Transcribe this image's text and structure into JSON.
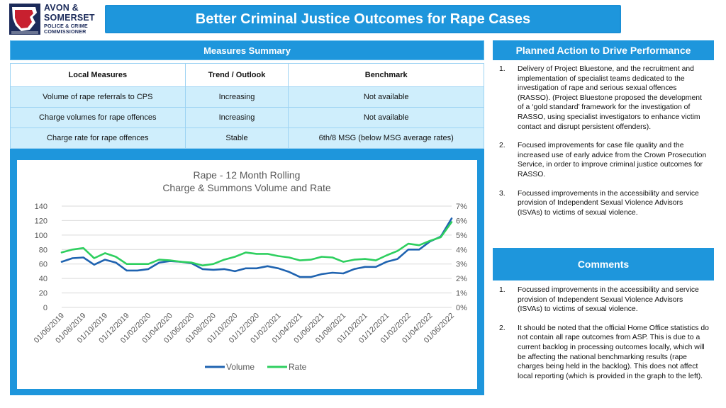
{
  "logo": {
    "line1": "AVON &",
    "line2": "SOMERSET",
    "line3": "POLICE & CRIME",
    "line4": "COMMISSIONER"
  },
  "title": "Better Criminal Justice Outcomes for Rape Cases",
  "measures": {
    "header": "Measures Summary",
    "columns": [
      "Local Measures",
      "Trend / Outlook",
      "Benchmark"
    ],
    "rows": [
      [
        "Volume of rape referrals to CPS",
        "Increasing",
        "Not available"
      ],
      [
        "Charge volumes for rape offences",
        "Increasing",
        "Not available"
      ],
      [
        "Charge rate for rape offences",
        "Stable",
        "6th/8 MSG (below MSG average rates)"
      ]
    ]
  },
  "planned_action": {
    "header": "Planned Action to Drive Performance",
    "items": [
      {
        "num": "1.",
        "text": "Delivery of Project Bluestone, and the recruitment and implementation of specialist teams dedicated to the investigation of rape and serious sexual offences (RASSO). (Project Bluestone proposed the development of a ‘gold standard’ framework for the investigation of RASSO, using specialist investigators to enhance victim contact and disrupt persistent offenders)."
      },
      {
        "num": "2.",
        "text": "Focused improvements for case file quality and the increased use of early advice from the Crown Prosecution Service, in order to improve criminal justice outcomes for RASSO."
      },
      {
        "num": "3.",
        "text": "Focussed improvements in the accessibility and service provision of Independent Sexual Violence Advisors (ISVAs) to victims of sexual violence."
      }
    ]
  },
  "comments": {
    "header": "Comments",
    "items": [
      {
        "num": "1.",
        "text": "Focussed improvements in the accessibility and service provision of Independent Sexual Violence Advisors (ISVAs) to victims of sexual violence."
      },
      {
        "num": "2.",
        "text": "It should be noted that the official Home Office statistics do not contain all rape outcomes from ASP. This is due to a current backlog in processing outcomes locally, which will be affecting the national benchmarking results (rape charges being held in the backlog). This does not affect local reporting (which is provided in the graph to the left)."
      }
    ]
  },
  "chart_data": {
    "type": "line",
    "title_line1": "Rape - 12 Month Rolling",
    "title_line2": "Charge & Summons Volume and Rate",
    "x": [
      "01/06/2019",
      "01/07/2019",
      "01/08/2019",
      "01/09/2019",
      "01/10/2019",
      "01/11/2019",
      "01/12/2019",
      "01/01/2020",
      "01/02/2020",
      "01/03/2020",
      "01/04/2020",
      "01/05/2020",
      "01/06/2020",
      "01/07/2020",
      "01/08/2020",
      "01/09/2020",
      "01/10/2020",
      "01/11/2020",
      "01/12/2020",
      "01/01/2021",
      "01/02/2021",
      "01/03/2021",
      "01/04/2021",
      "01/05/2021",
      "01/06/2021",
      "01/07/2021",
      "01/08/2021",
      "01/09/2021",
      "01/10/2021",
      "01/11/2021",
      "01/12/2021",
      "01/01/2022",
      "01/02/2022",
      "01/03/2022",
      "01/04/2022",
      "01/05/2022",
      "01/06/2022"
    ],
    "x_tick_labels": [
      "01/06/2019",
      "01/08/2019",
      "01/10/2019",
      "01/12/2019",
      "01/02/2020",
      "01/04/2020",
      "01/06/2020",
      "01/08/2020",
      "01/10/2020",
      "01/12/2020",
      "01/02/2021",
      "01/04/2021",
      "01/06/2021",
      "01/08/2021",
      "01/10/2021",
      "01/12/2021",
      "01/02/2022",
      "01/04/2022",
      "01/06/2022"
    ],
    "y_left_ticks": [
      "0",
      "20",
      "40",
      "60",
      "80",
      "100",
      "120",
      "140"
    ],
    "y_right_ticks": [
      "0%",
      "1%",
      "2%",
      "3%",
      "4%",
      "5%",
      "6%",
      "7%"
    ],
    "y_left_lim": [
      0,
      140
    ],
    "y_right_lim": [
      0,
      7
    ],
    "grid": true,
    "legend_position": "bottom",
    "series": [
      {
        "name": "Volume",
        "axis": "left",
        "color": "#1f63b0",
        "values": [
          63,
          68,
          69,
          59,
          66,
          62,
          51,
          51,
          53,
          62,
          64,
          63,
          61,
          53,
          52,
          53,
          50,
          54,
          54,
          57,
          54,
          49,
          42,
          42,
          46,
          48,
          47,
          53,
          56,
          56,
          63,
          67,
          80,
          80,
          91,
          98,
          123
        ]
      },
      {
        "name": "Rate",
        "axis": "right",
        "color": "#2ecf5f",
        "values": [
          3.8,
          4.0,
          4.1,
          3.4,
          3.75,
          3.5,
          3.0,
          3.0,
          3.0,
          3.3,
          3.25,
          3.15,
          3.1,
          2.9,
          3.0,
          3.3,
          3.5,
          3.8,
          3.7,
          3.7,
          3.55,
          3.45,
          3.25,
          3.3,
          3.5,
          3.45,
          3.15,
          3.3,
          3.35,
          3.25,
          3.6,
          3.9,
          4.4,
          4.3,
          4.6,
          4.85,
          5.9
        ]
      }
    ]
  },
  "colors": {
    "accent": "#1e96dc",
    "table_row": "#cfeefc",
    "logo_navy": "#1c2b5a",
    "logo_red": "#c8202f"
  }
}
